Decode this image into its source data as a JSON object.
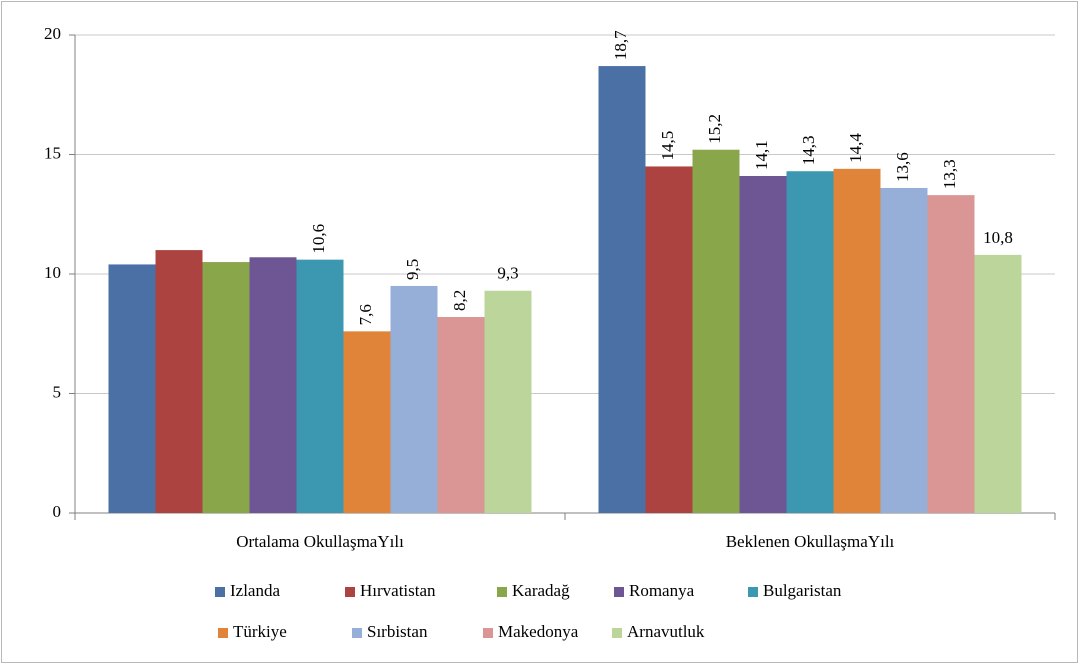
{
  "chart_data": {
    "type": "bar",
    "categories": [
      "Ortalama OkullaşmaYılı",
      "Beklenen OkullaşmaYılı"
    ],
    "series": [
      {
        "name": "Izlanda",
        "color": "#4a70a6",
        "values": [
          10.4,
          18.7
        ],
        "value_labels": [
          null,
          "18,7"
        ]
      },
      {
        "name": "Hırvatistan",
        "color": "#ac4340",
        "values": [
          11.0,
          14.5
        ],
        "value_labels": [
          null,
          "14,5"
        ]
      },
      {
        "name": "Karadağ",
        "color": "#8aa64b",
        "values": [
          10.5,
          15.2
        ],
        "value_labels": [
          null,
          "15,2"
        ]
      },
      {
        "name": "Romanya",
        "color": "#6e5594",
        "values": [
          10.7,
          14.1
        ],
        "value_labels": [
          null,
          "14,1"
        ]
      },
      {
        "name": "Bulgaristan",
        "color": "#3b98b0",
        "values": [
          10.6,
          14.3
        ],
        "value_labels": [
          "10,6",
          "14,3"
        ]
      },
      {
        "name": "Türkiye",
        "color": "#e0843a",
        "values": [
          7.6,
          14.4
        ],
        "value_labels": [
          "7,6",
          "14,4"
        ]
      },
      {
        "name": "Sırbistan",
        "color": "#95afd8",
        "values": [
          9.5,
          13.6
        ],
        "value_labels": [
          "9,5",
          "13,6"
        ]
      },
      {
        "name": "Makedonya",
        "color": "#d99694",
        "values": [
          8.2,
          13.3
        ],
        "value_labels": [
          "8,2",
          "13,3"
        ]
      },
      {
        "name": "Arnavutluk",
        "color": "#bcd59a",
        "values": [
          9.3,
          10.8
        ],
        "value_labels": [
          "9,3",
          "10,8"
        ]
      }
    ],
    "ylim": [
      0,
      20
    ],
    "yticks": [
      0,
      5,
      10,
      15,
      20
    ],
    "grid": true,
    "legend": "bottom"
  }
}
